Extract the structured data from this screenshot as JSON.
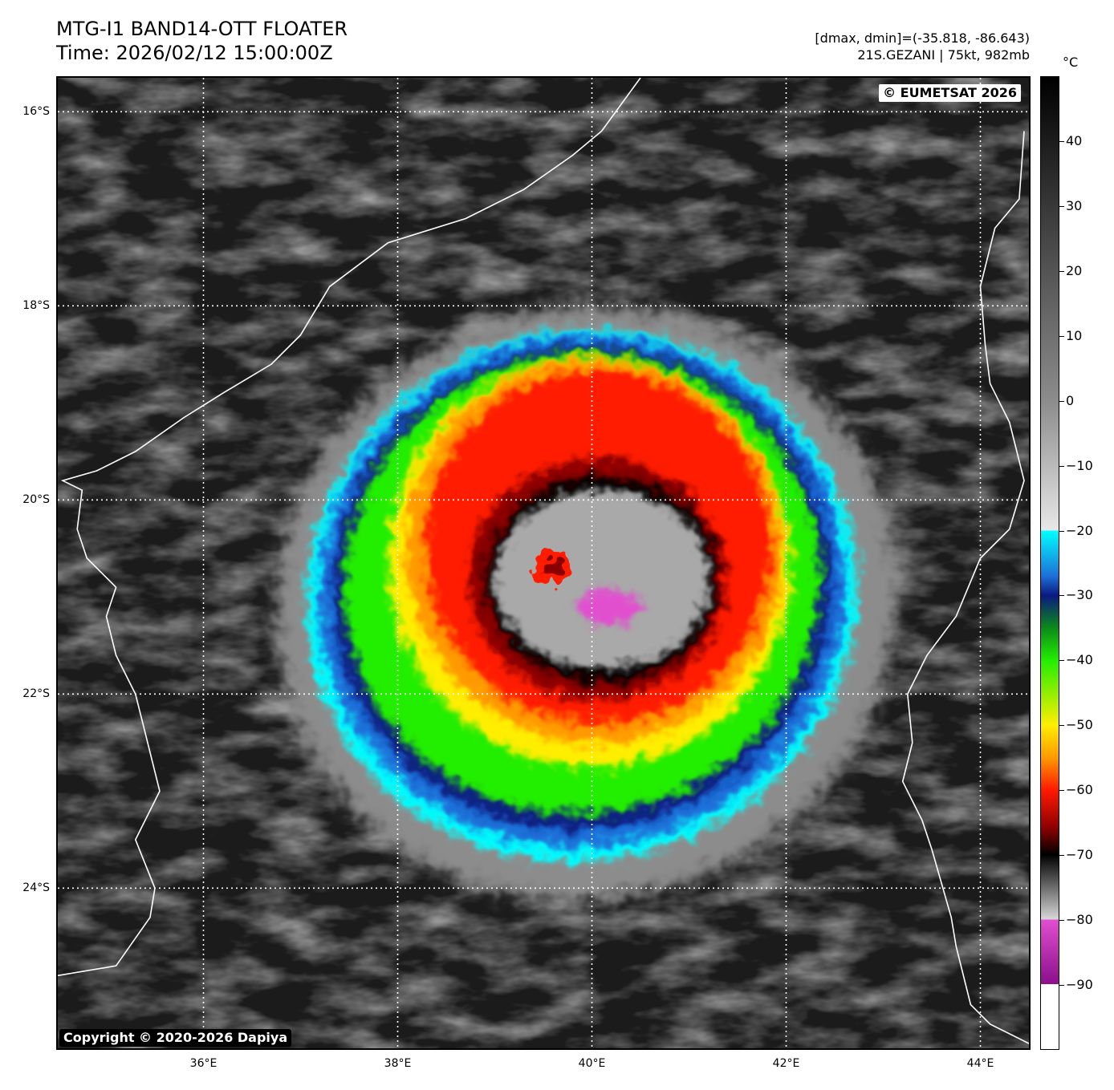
{
  "header": {
    "title_line1": "MTG-I1 BAND14-OTT FLOATER",
    "title_line2": "Time: 2026/02/12 15:00:00Z",
    "info_line1": "[dmax, dmin]=(-35.818, -86.643)",
    "info_line2": "21S.GEZANI | 75kt, 982mb"
  },
  "map": {
    "lat_labels": [
      "16°S",
      "18°S",
      "20°S",
      "22°S",
      "24°S"
    ],
    "lon_labels": [
      "36°E",
      "38°E",
      "40°E",
      "42°E",
      "44°E"
    ],
    "lat_values": [
      -16,
      -18,
      -20,
      -22,
      -24
    ],
    "lon_values": [
      36,
      38,
      40,
      42,
      44
    ],
    "lat_range": [
      -25.65,
      -15.65
    ],
    "lon_range": [
      34.5,
      44.5
    ],
    "storm_center": {
      "lat": -20.65,
      "lon": 39.65
    },
    "copyright_top": "© EUMETSAT 2026",
    "copyright_bottom": "Copyright © 2020-2026 Dapiya"
  },
  "colorbar": {
    "unit": "°C",
    "range": [
      -100,
      50
    ],
    "tick_labels": [
      "40",
      "30",
      "20",
      "10",
      "0",
      "−10",
      "−20",
      "−30",
      "−40",
      "−50",
      "−60",
      "−70",
      "−80",
      "−90"
    ],
    "tick_values": [
      40,
      30,
      20,
      10,
      0,
      -10,
      -20,
      -30,
      -40,
      -50,
      -60,
      -70,
      -80,
      -90
    ],
    "colors": {
      "white": "#ffffff",
      "magenta": "#e14fcf",
      "purple": "#8b0f8b",
      "black": "#000000",
      "dark_red": "#8a0000",
      "red": "#ff1a00",
      "orange": "#ff9a00",
      "yellow": "#ffee00",
      "green": "#22ee00",
      "dark_green": "#0b8a1a",
      "navy": "#0a1a80",
      "blue": "#1d70d8",
      "cyan": "#00ffff"
    }
  }
}
